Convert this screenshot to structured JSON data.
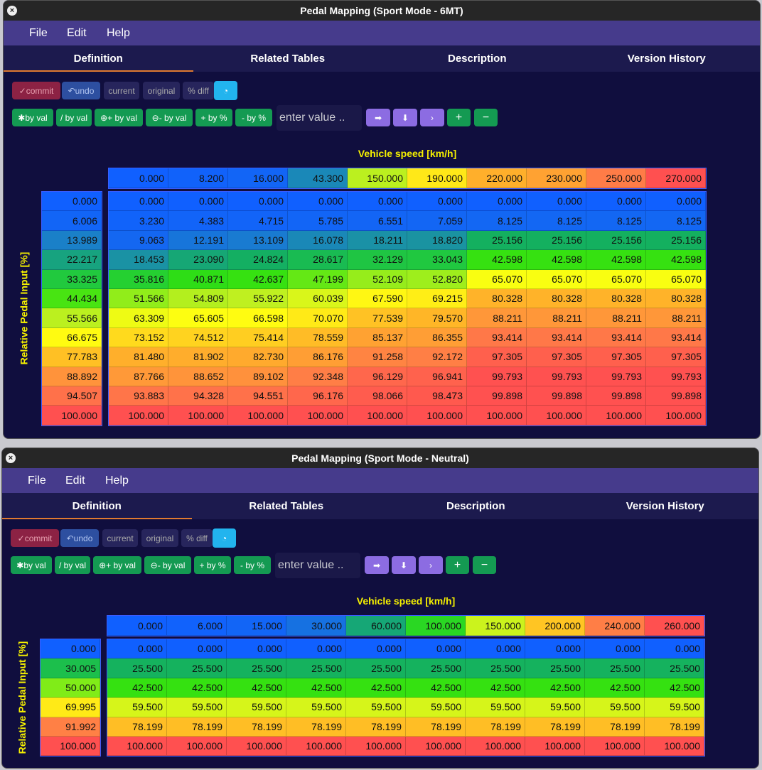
{
  "windows": [
    {
      "title": "Pedal Mapping (Sport Mode - 6MT)",
      "menu": [
        "File",
        "Edit",
        "Help"
      ],
      "tabs": [
        "Definition",
        "Related Tables",
        "Description",
        "Version History"
      ],
      "toolbar": [
        "commit",
        "undo",
        "current",
        "original",
        "% diff"
      ],
      "operations": [
        "by val",
        "/ by val",
        "+ by val",
        "- by val",
        "+ by %",
        "- by %"
      ],
      "input_placeholder": "enter value ..",
      "step_buttons": [
        "+",
        "−"
      ],
      "x_axis_label": "Vehicle speed [km/h]",
      "y_axis_label": "Relative Pedal Input [%]",
      "x_axis": [
        "0.000",
        "8.200",
        "16.000",
        "43.300",
        "150.000",
        "190.000",
        "220.000",
        "230.000",
        "250.000",
        "270.000"
      ],
      "y_axis": [
        "0.000",
        "6.006",
        "13.989",
        "22.217",
        "33.325",
        "44.434",
        "55.566",
        "66.675",
        "77.783",
        "88.892",
        "94.507",
        "100.000"
      ],
      "rows": [
        [
          "0.000",
          "0.000",
          "0.000",
          "0.000",
          "0.000",
          "0.000",
          "0.000",
          "0.000",
          "0.000",
          "0.000"
        ],
        [
          "3.230",
          "4.383",
          "4.715",
          "5.785",
          "6.551",
          "7.059",
          "8.125",
          "8.125",
          "8.125",
          "8.125"
        ],
        [
          "9.063",
          "12.191",
          "13.109",
          "16.078",
          "18.211",
          "18.820",
          "25.156",
          "25.156",
          "25.156",
          "25.156"
        ],
        [
          "18.453",
          "23.090",
          "24.824",
          "28.617",
          "32.129",
          "33.043",
          "42.598",
          "42.598",
          "42.598",
          "42.598"
        ],
        [
          "35.816",
          "40.871",
          "42.637",
          "47.199",
          "52.109",
          "52.820",
          "65.070",
          "65.070",
          "65.070",
          "65.070"
        ],
        [
          "51.566",
          "54.809",
          "55.922",
          "60.039",
          "67.590",
          "69.215",
          "80.328",
          "80.328",
          "80.328",
          "80.328"
        ],
        [
          "63.309",
          "65.605",
          "66.598",
          "70.070",
          "77.539",
          "79.570",
          "88.211",
          "88.211",
          "88.211",
          "88.211"
        ],
        [
          "73.152",
          "74.512",
          "75.414",
          "78.559",
          "85.137",
          "86.355",
          "93.414",
          "93.414",
          "93.414",
          "93.414"
        ],
        [
          "81.480",
          "81.902",
          "82.730",
          "86.176",
          "91.258",
          "92.172",
          "97.305",
          "97.305",
          "97.305",
          "97.305"
        ],
        [
          "87.766",
          "88.652",
          "89.102",
          "92.348",
          "96.129",
          "96.941",
          "99.793",
          "99.793",
          "99.793",
          "99.793"
        ],
        [
          "93.883",
          "94.328",
          "94.551",
          "96.176",
          "98.066",
          "98.473",
          "99.898",
          "99.898",
          "99.898",
          "99.898"
        ],
        [
          "100.000",
          "100.000",
          "100.000",
          "100.000",
          "100.000",
          "100.000",
          "100.000",
          "100.000",
          "100.000",
          "100.000"
        ]
      ]
    },
    {
      "title": "Pedal Mapping (Sport Mode - Neutral)",
      "menu": [
        "File",
        "Edit",
        "Help"
      ],
      "tabs": [
        "Definition",
        "Related Tables",
        "Description",
        "Version History"
      ],
      "toolbar": [
        "commit",
        "undo",
        "current",
        "original",
        "% diff"
      ],
      "operations": [
        "by val",
        "/ by val",
        "+ by val",
        "- by val",
        "+ by %",
        "- by %"
      ],
      "input_placeholder": "enter value ..",
      "step_buttons": [
        "+",
        "−"
      ],
      "x_axis_label": "Vehicle speed [km/h]",
      "y_axis_label": "Relative Pedal Input [%]",
      "x_axis": [
        "0.000",
        "6.000",
        "15.000",
        "30.000",
        "60.000",
        "100.000",
        "150.000",
        "200.000",
        "240.000",
        "260.000"
      ],
      "y_axis": [
        "0.000",
        "30.005",
        "50.000",
        "69.995",
        "91.992",
        "100.000"
      ],
      "rows": [
        [
          "0.000",
          "0.000",
          "0.000",
          "0.000",
          "0.000",
          "0.000",
          "0.000",
          "0.000",
          "0.000",
          "0.000"
        ],
        [
          "25.500",
          "25.500",
          "25.500",
          "25.500",
          "25.500",
          "25.500",
          "25.500",
          "25.500",
          "25.500",
          "25.500"
        ],
        [
          "42.500",
          "42.500",
          "42.500",
          "42.500",
          "42.500",
          "42.500",
          "42.500",
          "42.500",
          "42.500",
          "42.500"
        ],
        [
          "59.500",
          "59.500",
          "59.500",
          "59.500",
          "59.500",
          "59.500",
          "59.500",
          "59.500",
          "59.500",
          "59.500"
        ],
        [
          "78.199",
          "78.199",
          "78.199",
          "78.199",
          "78.199",
          "78.199",
          "78.199",
          "78.199",
          "78.199",
          "78.199"
        ],
        [
          "100.000",
          "100.000",
          "100.000",
          "100.000",
          "100.000",
          "100.000",
          "100.000",
          "100.000",
          "100.000",
          "100.000"
        ]
      ]
    }
  ]
}
